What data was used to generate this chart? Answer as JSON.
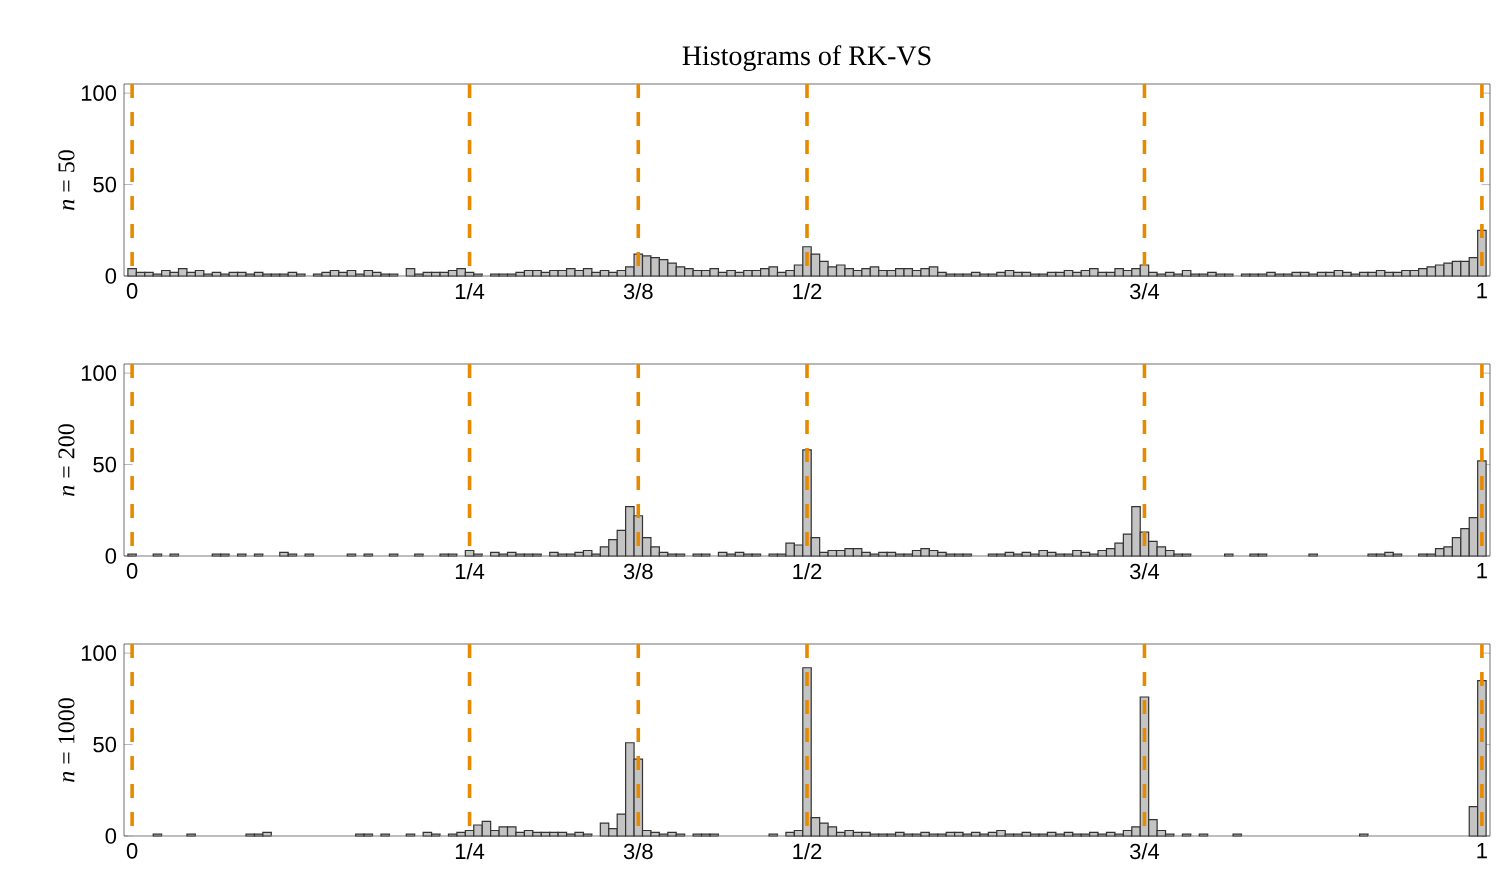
{
  "chart_data": [
    {
      "type": "histogram",
      "title": "Histograms of RK-VS",
      "ylabel": "*n* = 50",
      "color": "#c4c4c4",
      "bins": [
        -0.003125,
        0.003125,
        0.009375,
        0.015625,
        0.021875,
        0.028125,
        0.034375,
        0.040625,
        0.046875,
        0.053125,
        0.059375,
        0.065625,
        0.071875,
        0.078125,
        0.084375,
        0.090625,
        0.096875,
        0.103125,
        0.109375,
        0.115625,
        0.121875,
        0.128125,
        0.134375,
        0.140625,
        0.146875,
        0.153125,
        0.159375,
        0.165625,
        0.171875,
        0.178125,
        0.184375,
        0.190625,
        0.196875,
        0.203125,
        0.209375,
        0.215625,
        0.221875,
        0.228125,
        0.234375,
        0.240625,
        0.246875,
        0.253125,
        0.259375,
        0.265625,
        0.271875,
        0.278125,
        0.284375,
        0.290625,
        0.296875,
        0.303125,
        0.309375,
        0.315625,
        0.321875,
        0.328125,
        0.334375,
        0.340625,
        0.346875,
        0.353125,
        0.359375,
        0.365625,
        0.371875,
        0.378125,
        0.384375,
        0.390625,
        0.396875,
        0.403125,
        0.409375,
        0.415625,
        0.421875,
        0.428125,
        0.434375,
        0.440625,
        0.446875,
        0.453125,
        0.459375,
        0.465625,
        0.471875,
        0.478125,
        0.484375,
        0.490625,
        0.496875,
        0.503125,
        0.509375,
        0.515625,
        0.521875,
        0.528125,
        0.534375,
        0.540625,
        0.546875,
        0.553125,
        0.559375,
        0.565625,
        0.571875,
        0.578125,
        0.584375,
        0.590625,
        0.596875,
        0.603125,
        0.609375,
        0.615625,
        0.621875,
        0.628125,
        0.634375,
        0.640625,
        0.646875,
        0.653125,
        0.659375,
        0.665625,
        0.671875,
        0.678125,
        0.684375,
        0.690625,
        0.696875,
        0.703125,
        0.709375,
        0.715625,
        0.721875,
        0.728125,
        0.734375,
        0.740625,
        0.746875,
        0.753125,
        0.759375,
        0.765625,
        0.771875,
        0.778125,
        0.784375,
        0.790625,
        0.796875,
        0.803125,
        0.809375,
        0.815625,
        0.821875,
        0.828125,
        0.834375,
        0.840625,
        0.846875,
        0.853125,
        0.859375,
        0.865625,
        0.871875,
        0.878125,
        0.884375,
        0.890625,
        0.896875,
        0.903125,
        0.909375,
        0.915625,
        0.921875,
        0.928125,
        0.934375,
        0.940625,
        0.946875,
        0.953125,
        0.959375,
        0.965625,
        0.971875,
        0.978125,
        0.984375,
        0.990625,
        0.996875,
        1.003125
      ],
      "values": [
        4,
        2,
        2,
        1,
        3,
        2,
        4,
        2,
        3,
        1,
        2,
        1,
        2,
        2,
        1,
        2,
        1,
        1,
        1,
        2,
        1,
        0,
        1,
        2,
        3,
        2,
        3,
        1,
        3,
        2,
        1,
        1,
        0,
        4,
        1,
        2,
        2,
        2,
        3,
        4,
        2,
        1,
        0,
        1,
        1,
        1,
        2,
        3,
        3,
        2,
        3,
        3,
        4,
        3,
        4,
        2,
        3,
        2,
        3,
        5,
        12,
        11,
        10,
        9,
        7,
        5,
        4,
        3,
        3,
        4,
        2,
        3,
        2,
        3,
        3,
        4,
        5,
        2,
        3,
        6,
        16,
        12,
        8,
        5,
        6,
        4,
        3,
        4,
        5,
        3,
        3,
        4,
        4,
        3,
        4,
        5,
        2,
        1,
        1,
        1,
        2,
        1,
        1,
        2,
        3,
        2,
        2,
        1,
        1,
        2,
        2,
        3,
        2,
        3,
        4,
        2,
        2,
        4,
        3,
        4,
        6,
        2,
        1,
        2,
        1,
        3,
        1,
        1,
        2,
        1,
        1,
        0,
        1,
        1,
        1,
        2,
        1,
        1,
        2,
        2,
        1,
        2,
        2,
        3,
        2,
        1,
        2,
        2,
        3,
        2,
        2,
        3,
        3,
        4,
        5,
        6,
        7,
        8,
        8,
        10,
        25
      ],
      "xlim": [
        -0.006,
        1.006
      ],
      "ylim": [
        0,
        105
      ],
      "yticks": [
        0,
        50,
        100
      ],
      "xticks": [
        0,
        {
          "value": 0.25,
          "label": "1/4"
        },
        {
          "value": 0.375,
          "label": "3/8"
        },
        {
          "value": 0.5,
          "label": "1/2"
        },
        {
          "value": 0.75,
          "label": "3/4"
        },
        1
      ],
      "ref_lines": [
        {
          "axis": "x",
          "value": 0,
          "color": "#e68a00",
          "line_style": "dashed"
        },
        {
          "axis": "x",
          "value": 0.25,
          "color": "#e68a00",
          "line_style": "dashed"
        },
        {
          "axis": "x",
          "value": 0.375,
          "color": "#e68a00",
          "line_style": "dashed"
        },
        {
          "axis": "x",
          "value": 0.5,
          "color": "#e68a00",
          "line_style": "dashed"
        },
        {
          "axis": "x",
          "value": 0.75,
          "color": "#e68a00",
          "line_style": "dashed"
        },
        {
          "axis": "x",
          "value": 1,
          "color": "#e68a00",
          "line_style": "dashed"
        }
      ]
    },
    {
      "type": "histogram",
      "ylabel": "*n* = 200",
      "color": "#c4c4c4",
      "bins": [
        -0.003125,
        0.003125,
        0.009375,
        0.015625,
        0.021875,
        0.028125,
        0.034375,
        0.040625,
        0.046875,
        0.053125,
        0.059375,
        0.065625,
        0.071875,
        0.078125,
        0.084375,
        0.090625,
        0.096875,
        0.103125,
        0.109375,
        0.115625,
        0.121875,
        0.128125,
        0.134375,
        0.140625,
        0.146875,
        0.153125,
        0.159375,
        0.165625,
        0.171875,
        0.178125,
        0.184375,
        0.190625,
        0.196875,
        0.203125,
        0.209375,
        0.215625,
        0.221875,
        0.228125,
        0.234375,
        0.240625,
        0.246875,
        0.253125,
        0.259375,
        0.265625,
        0.271875,
        0.278125,
        0.284375,
        0.290625,
        0.296875,
        0.303125,
        0.309375,
        0.315625,
        0.321875,
        0.328125,
        0.334375,
        0.340625,
        0.346875,
        0.353125,
        0.359375,
        0.365625,
        0.371875,
        0.378125,
        0.384375,
        0.390625,
        0.396875,
        0.403125,
        0.409375,
        0.415625,
        0.421875,
        0.428125,
        0.434375,
        0.440625,
        0.446875,
        0.453125,
        0.459375,
        0.465625,
        0.471875,
        0.478125,
        0.484375,
        0.490625,
        0.496875,
        0.503125,
        0.509375,
        0.515625,
        0.521875,
        0.528125,
        0.534375,
        0.540625,
        0.546875,
        0.553125,
        0.559375,
        0.565625,
        0.571875,
        0.578125,
        0.584375,
        0.590625,
        0.596875,
        0.603125,
        0.609375,
        0.615625,
        0.621875,
        0.628125,
        0.634375,
        0.640625,
        0.646875,
        0.653125,
        0.659375,
        0.665625,
        0.671875,
        0.678125,
        0.684375,
        0.690625,
        0.696875,
        0.703125,
        0.709375,
        0.715625,
        0.721875,
        0.728125,
        0.734375,
        0.740625,
        0.746875,
        0.753125,
        0.759375,
        0.765625,
        0.771875,
        0.778125,
        0.784375,
        0.790625,
        0.796875,
        0.803125,
        0.809375,
        0.815625,
        0.821875,
        0.828125,
        0.834375,
        0.840625,
        0.846875,
        0.853125,
        0.859375,
        0.865625,
        0.871875,
        0.878125,
        0.884375,
        0.890625,
        0.896875,
        0.903125,
        0.909375,
        0.915625,
        0.921875,
        0.928125,
        0.934375,
        0.940625,
        0.946875,
        0.953125,
        0.959375,
        0.965625,
        0.971875,
        0.978125,
        0.984375,
        0.990625,
        0.996875,
        1.003125
      ],
      "values": [
        1,
        0,
        0,
        1,
        0,
        1,
        0,
        0,
        0,
        0,
        1,
        1,
        0,
        1,
        0,
        1,
        0,
        0,
        2,
        1,
        0,
        1,
        0,
        0,
        0,
        0,
        1,
        0,
        1,
        0,
        0,
        1,
        0,
        0,
        1,
        0,
        0,
        1,
        1,
        0,
        3,
        1,
        0,
        2,
        1,
        2,
        1,
        1,
        1,
        0,
        2,
        1,
        1,
        2,
        3,
        1,
        5,
        9,
        14,
        27,
        22,
        10,
        5,
        2,
        1,
        1,
        0,
        1,
        1,
        0,
        2,
        1,
        2,
        1,
        1,
        0,
        1,
        1,
        7,
        6,
        58,
        10,
        2,
        3,
        3,
        4,
        4,
        2,
        1,
        2,
        2,
        1,
        1,
        3,
        4,
        3,
        2,
        1,
        1,
        1,
        0,
        0,
        1,
        1,
        2,
        1,
        2,
        1,
        3,
        2,
        1,
        1,
        3,
        2,
        1,
        3,
        4,
        7,
        12,
        27,
        13,
        8,
        5,
        3,
        1,
        1,
        0,
        0,
        0,
        0,
        1,
        0,
        0,
        1,
        1,
        0,
        0,
        0,
        0,
        0,
        1,
        0,
        0,
        0,
        0,
        0,
        0,
        1,
        1,
        2,
        1,
        0,
        0,
        1,
        1,
        4,
        5,
        10,
        15,
        21,
        52
      ],
      "xlim": [
        -0.006,
        1.006
      ],
      "ylim": [
        0,
        105
      ],
      "yticks": [
        0,
        50,
        100
      ],
      "xticks": [
        0,
        {
          "value": 0.25,
          "label": "1/4"
        },
        {
          "value": 0.375,
          "label": "3/8"
        },
        {
          "value": 0.5,
          "label": "1/2"
        },
        {
          "value": 0.75,
          "label": "3/4"
        },
        1
      ],
      "ref_lines": [
        {
          "axis": "x",
          "value": 0,
          "color": "#e68a00",
          "line_style": "dashed"
        },
        {
          "axis": "x",
          "value": 0.25,
          "color": "#e68a00",
          "line_style": "dashed"
        },
        {
          "axis": "x",
          "value": 0.375,
          "color": "#e68a00",
          "line_style": "dashed"
        },
        {
          "axis": "x",
          "value": 0.5,
          "color": "#e68a00",
          "line_style": "dashed"
        },
        {
          "axis": "x",
          "value": 0.75,
          "color": "#e68a00",
          "line_style": "dashed"
        },
        {
          "axis": "x",
          "value": 1,
          "color": "#e68a00",
          "line_style": "dashed"
        }
      ]
    },
    {
      "type": "histogram",
      "ylabel": "*n* = 1000",
      "color": "#c4c4c4",
      "bins": [
        -0.003125,
        0.003125,
        0.009375,
        0.015625,
        0.021875,
        0.028125,
        0.034375,
        0.040625,
        0.046875,
        0.053125,
        0.059375,
        0.065625,
        0.071875,
        0.078125,
        0.084375,
        0.090625,
        0.096875,
        0.103125,
        0.109375,
        0.115625,
        0.121875,
        0.128125,
        0.134375,
        0.140625,
        0.146875,
        0.153125,
        0.159375,
        0.165625,
        0.171875,
        0.178125,
        0.184375,
        0.190625,
        0.196875,
        0.203125,
        0.209375,
        0.215625,
        0.221875,
        0.228125,
        0.234375,
        0.240625,
        0.246875,
        0.253125,
        0.259375,
        0.265625,
        0.271875,
        0.278125,
        0.284375,
        0.290625,
        0.296875,
        0.303125,
        0.309375,
        0.315625,
        0.321875,
        0.328125,
        0.334375,
        0.340625,
        0.346875,
        0.353125,
        0.359375,
        0.365625,
        0.371875,
        0.378125,
        0.384375,
        0.390625,
        0.396875,
        0.403125,
        0.409375,
        0.415625,
        0.421875,
        0.428125,
        0.434375,
        0.440625,
        0.446875,
        0.453125,
        0.459375,
        0.465625,
        0.471875,
        0.478125,
        0.484375,
        0.490625,
        0.496875,
        0.503125,
        0.509375,
        0.515625,
        0.521875,
        0.528125,
        0.534375,
        0.540625,
        0.546875,
        0.553125,
        0.559375,
        0.565625,
        0.571875,
        0.578125,
        0.584375,
        0.590625,
        0.596875,
        0.603125,
        0.609375,
        0.615625,
        0.621875,
        0.628125,
        0.634375,
        0.640625,
        0.646875,
        0.653125,
        0.659375,
        0.665625,
        0.671875,
        0.678125,
        0.684375,
        0.690625,
        0.696875,
        0.703125,
        0.709375,
        0.715625,
        0.721875,
        0.728125,
        0.734375,
        0.740625,
        0.746875,
        0.753125,
        0.759375,
        0.765625,
        0.771875,
        0.778125,
        0.784375,
        0.790625,
        0.796875,
        0.803125,
        0.809375,
        0.815625,
        0.821875,
        0.828125,
        0.834375,
        0.840625,
        0.846875,
        0.853125,
        0.859375,
        0.865625,
        0.871875,
        0.878125,
        0.884375,
        0.890625,
        0.896875,
        0.903125,
        0.909375,
        0.915625,
        0.921875,
        0.928125,
        0.934375,
        0.940625,
        0.946875,
        0.953125,
        0.959375,
        0.965625,
        0.971875,
        0.978125,
        0.984375,
        0.990625,
        0.996875,
        1.003125
      ],
      "values": [
        0,
        0,
        0,
        1,
        0,
        0,
        0,
        1,
        0,
        0,
        0,
        0,
        0,
        0,
        1,
        1,
        2,
        0,
        0,
        0,
        0,
        0,
        0,
        0,
        0,
        0,
        0,
        1,
        1,
        0,
        1,
        0,
        0,
        1,
        0,
        2,
        1,
        0,
        1,
        2,
        3,
        6,
        8,
        3,
        5,
        5,
        2,
        3,
        2,
        2,
        2,
        2,
        1,
        2,
        1,
        0,
        7,
        4,
        12,
        51,
        42,
        3,
        2,
        1,
        2,
        1,
        0,
        1,
        1,
        1,
        0,
        0,
        0,
        0,
        0,
        0,
        1,
        0,
        2,
        3,
        92,
        10,
        7,
        5,
        2,
        3,
        2,
        2,
        1,
        1,
        1,
        2,
        1,
        1,
        2,
        1,
        1,
        2,
        2,
        1,
        2,
        1,
        2,
        3,
        1,
        1,
        2,
        1,
        1,
        2,
        1,
        2,
        1,
        1,
        2,
        1,
        2,
        1,
        3,
        5,
        76,
        9,
        3,
        1,
        0,
        1,
        0,
        1,
        0,
        0,
        0,
        1,
        0,
        0,
        0,
        0,
        0,
        0,
        0,
        0,
        0,
        0,
        0,
        0,
        0,
        0,
        1,
        0,
        0,
        0,
        0,
        0,
        0,
        0,
        0,
        0,
        0,
        0,
        0,
        16,
        85
      ],
      "xlim": [
        -0.006,
        1.006
      ],
      "ylim": [
        0,
        105
      ],
      "yticks": [
        0,
        50,
        100
      ],
      "xticks": [
        0,
        {
          "value": 0.25,
          "label": "1/4"
        },
        {
          "value": 0.375,
          "label": "3/8"
        },
        {
          "value": 0.5,
          "label": "1/2"
        },
        {
          "value": 0.75,
          "label": "3/4"
        },
        1
      ],
      "ref_lines": [
        {
          "axis": "x",
          "value": 0,
          "color": "#e68a00",
          "line_style": "dashed"
        },
        {
          "axis": "x",
          "value": 0.25,
          "color": "#e68a00",
          "line_style": "dashed"
        },
        {
          "axis": "x",
          "value": 0.375,
          "color": "#e68a00",
          "line_style": "dashed"
        },
        {
          "axis": "x",
          "value": 0.5,
          "color": "#e68a00",
          "line_style": "dashed"
        },
        {
          "axis": "x",
          "value": 0.75,
          "color": "#e68a00",
          "line_style": "dashed"
        },
        {
          "axis": "x",
          "value": 1,
          "color": "#e68a00",
          "line_style": "dashed"
        }
      ]
    }
  ]
}
